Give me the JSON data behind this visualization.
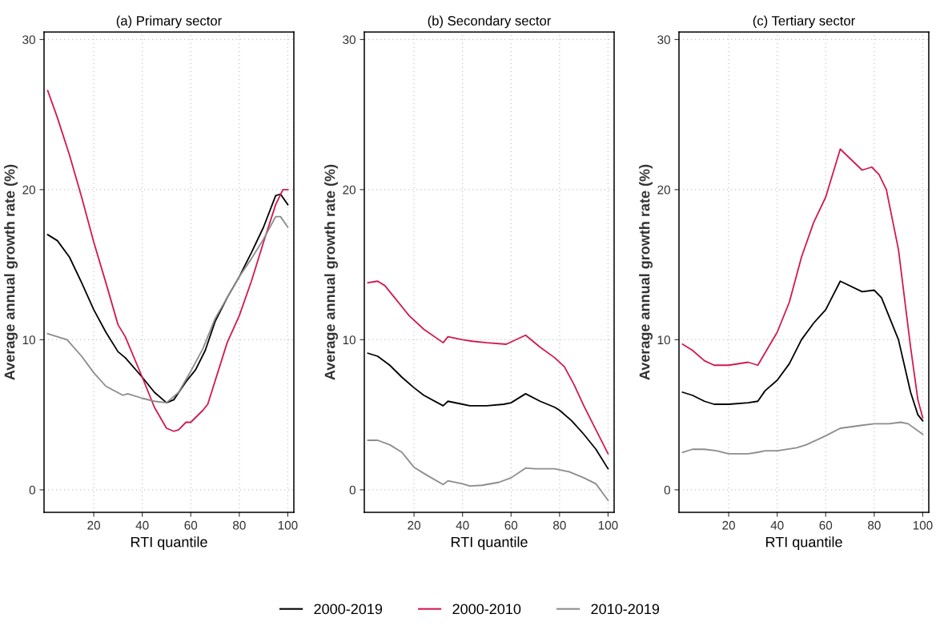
{
  "chart_data": [
    {
      "type": "line",
      "title": "(a) Primary sector",
      "xlabel": "RTI quantile",
      "ylabel": "Average annual growth rate (%)",
      "xlim": [
        -0.5,
        102.5
      ],
      "ylim": [
        -1.5,
        30.5
      ],
      "xticks": [
        20,
        40,
        60,
        80,
        100
      ],
      "yticks": [
        0,
        10,
        20,
        30
      ],
      "grid": true,
      "legend": "bottom",
      "line_style": "solid",
      "series": [
        {
          "name": "2000-2019",
          "color": "#000000",
          "x": [
            1,
            5,
            10,
            15,
            20,
            25,
            30,
            33,
            40,
            45,
            50,
            53,
            58,
            62,
            66,
            70,
            75,
            80,
            85,
            90,
            95,
            97,
            100
          ],
          "values": [
            17.0,
            16.6,
            15.5,
            13.8,
            12.0,
            10.5,
            9.2,
            8.8,
            7.5,
            6.5,
            5.8,
            6.0,
            7.2,
            8.0,
            9.3,
            11.2,
            12.8,
            14.2,
            15.8,
            17.5,
            19.6,
            19.7,
            19.0
          ]
        },
        {
          "name": "2000-2010",
          "color": "#d11a4f",
          "x": [
            1,
            5,
            10,
            15,
            20,
            25,
            30,
            33,
            40,
            45,
            50,
            53,
            55,
            58,
            60,
            65,
            67,
            75,
            80,
            85,
            90,
            95,
            98,
            100
          ],
          "values": [
            26.6,
            24.8,
            22.3,
            19.5,
            16.5,
            13.8,
            11.0,
            10.2,
            7.5,
            5.5,
            4.1,
            3.9,
            4.0,
            4.5,
            4.5,
            5.3,
            5.7,
            9.8,
            11.6,
            13.9,
            16.5,
            19.0,
            20.0,
            20.0
          ]
        },
        {
          "name": "2010-2019",
          "color": "#8c8c8c",
          "x": [
            1,
            5,
            9,
            15,
            20,
            25,
            32,
            34,
            40,
            45,
            50,
            55,
            60,
            65,
            70,
            75,
            80,
            85,
            90,
            95,
            97,
            100
          ],
          "values": [
            10.4,
            10.2,
            10.0,
            8.9,
            7.8,
            6.9,
            6.3,
            6.4,
            6.1,
            5.9,
            5.8,
            6.5,
            7.9,
            9.4,
            11.4,
            12.8,
            14.2,
            15.4,
            16.7,
            18.2,
            18.2,
            17.5
          ]
        }
      ]
    },
    {
      "type": "line",
      "title": "(b) Secondary sector",
      "xlabel": "RTI quantile",
      "ylabel": "Average annual growth rate (%)",
      "xlim": [
        -0.5,
        102.5
      ],
      "ylim": [
        -1.5,
        30.5
      ],
      "xticks": [
        20,
        40,
        60,
        80,
        100
      ],
      "yticks": [
        0,
        10,
        20,
        30
      ],
      "grid": true,
      "line_style": "solid",
      "series": [
        {
          "color": "#000000",
          "x": [
            1,
            5,
            10,
            15,
            20,
            24,
            32,
            34,
            40,
            43,
            50,
            57,
            60,
            66,
            72,
            78,
            80,
            85,
            90,
            95,
            100
          ],
          "values": [
            9.1,
            8.9,
            8.3,
            7.5,
            6.8,
            6.3,
            5.6,
            5.9,
            5.7,
            5.6,
            5.6,
            5.7,
            5.8,
            6.4,
            5.9,
            5.5,
            5.3,
            4.6,
            3.7,
            2.7,
            1.4
          ]
        },
        {
          "color": "#d11a4f",
          "x": [
            1,
            5,
            8,
            12,
            18,
            24,
            32,
            34,
            40,
            44,
            50,
            58,
            66,
            72,
            78,
            82,
            86,
            90,
            95,
            100
          ],
          "values": [
            13.8,
            13.9,
            13.6,
            12.8,
            11.6,
            10.7,
            9.8,
            10.2,
            10.0,
            9.9,
            9.8,
            9.7,
            10.3,
            9.5,
            8.8,
            8.2,
            7.0,
            5.6,
            4.0,
            2.4
          ]
        },
        {
          "color": "#8c8c8c",
          "x": [
            1,
            5,
            10,
            15,
            20,
            25,
            32,
            34,
            40,
            43,
            48,
            55,
            60,
            66,
            70,
            78,
            84,
            90,
            95,
            100
          ],
          "values": [
            3.3,
            3.3,
            3.0,
            2.5,
            1.5,
            1.0,
            0.35,
            0.6,
            0.4,
            0.25,
            0.3,
            0.5,
            0.8,
            1.45,
            1.4,
            1.4,
            1.2,
            0.8,
            0.4,
            -0.7
          ]
        }
      ]
    },
    {
      "type": "line",
      "title": "(c) Tertiary sector",
      "xlabel": "RTI quantile",
      "ylabel": "Average annual growth rate (%)",
      "xlim": [
        -0.5,
        102.5
      ],
      "ylim": [
        -1.5,
        30.5
      ],
      "xticks": [
        20,
        40,
        60,
        80,
        100
      ],
      "yticks": [
        0,
        10,
        20,
        30
      ],
      "grid": true,
      "line_style": "solid",
      "series": [
        {
          "color": "#000000",
          "x": [
            1,
            5,
            10,
            14,
            20,
            28,
            32,
            35,
            40,
            45,
            50,
            55,
            60,
            66,
            75,
            80,
            83,
            90,
            95,
            98,
            100
          ],
          "values": [
            6.5,
            6.3,
            5.9,
            5.7,
            5.7,
            5.8,
            5.9,
            6.6,
            7.3,
            8.4,
            10.0,
            11.1,
            12.0,
            13.9,
            13.2,
            13.3,
            12.8,
            10.0,
            6.5,
            5.0,
            4.6
          ]
        },
        {
          "color": "#d11a4f",
          "x": [
            1,
            5,
            10,
            14,
            20,
            28,
            32,
            40,
            45,
            50,
            55,
            60,
            66,
            75,
            79,
            82,
            85,
            90,
            95,
            98,
            100
          ],
          "values": [
            9.7,
            9.3,
            8.6,
            8.3,
            8.3,
            8.5,
            8.3,
            10.5,
            12.5,
            15.5,
            17.8,
            19.5,
            22.7,
            21.3,
            21.5,
            21.0,
            20.0,
            16.0,
            9.5,
            6.0,
            4.8
          ]
        },
        {
          "color": "#8c8c8c",
          "x": [
            1,
            5,
            10,
            15,
            20,
            28,
            32,
            35,
            40,
            48,
            52,
            60,
            66,
            75,
            80,
            86,
            91,
            94,
            100
          ],
          "values": [
            2.5,
            2.7,
            2.7,
            2.6,
            2.4,
            2.4,
            2.5,
            2.6,
            2.6,
            2.8,
            3.0,
            3.6,
            4.1,
            4.3,
            4.4,
            4.4,
            4.5,
            4.4,
            3.7
          ]
        }
      ]
    }
  ]
}
